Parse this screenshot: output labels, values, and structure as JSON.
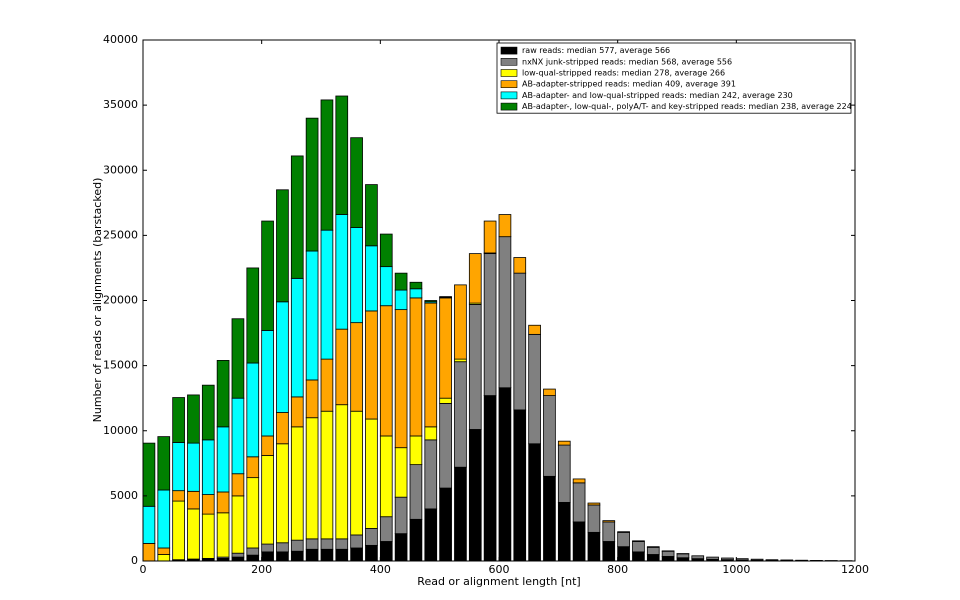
{
  "chart_data": {
    "type": "stacked_histogram",
    "xlabel": "Read or alignment length [nt]",
    "ylabel": "Number of reads or alignments (barstacked)",
    "bins": [
      0,
      25,
      50,
      75,
      100,
      125,
      150,
      175,
      200,
      225,
      250,
      275,
      300,
      325,
      350,
      375,
      400,
      425,
      450,
      475,
      500,
      525,
      550,
      575,
      600,
      625,
      650,
      675,
      700,
      725,
      750,
      775,
      800,
      825,
      850,
      875,
      900,
      925,
      950,
      975,
      1000,
      1025,
      1050,
      1075,
      1100,
      1125,
      1150,
      1175,
      1200
    ],
    "xlim": [
      0,
      1200
    ],
    "xticks": [
      0,
      200,
      400,
      600,
      800,
      1000,
      1200
    ],
    "ylim": [
      0,
      40000
    ],
    "yticks": [
      0,
      5000,
      10000,
      15000,
      20000,
      25000,
      30000,
      35000,
      40000
    ],
    "legend": "upper right",
    "series": [
      {
        "name": "raw reads: median 577, average 566",
        "color": "#000000",
        "values": [
          0,
          0,
          50,
          100,
          150,
          200,
          300,
          450,
          700,
          700,
          750,
          900,
          900,
          900,
          1000,
          1200,
          1500,
          2100,
          3200,
          4000,
          5600,
          7200,
          10100,
          12700,
          13300,
          11600,
          9000,
          6500,
          4500,
          3000,
          2200,
          1500,
          1100,
          700,
          500,
          350,
          250,
          180,
          130,
          100,
          80,
          60,
          45,
          35,
          25,
          20,
          15,
          10
        ]
      },
      {
        "name": "nxNX junk-stripped reads: median 568, average 556",
        "color": "#808080",
        "values": [
          0,
          0,
          50,
          50,
          50,
          100,
          300,
          550,
          600,
          700,
          850,
          800,
          800,
          800,
          1000,
          1300,
          1900,
          2800,
          4200,
          5300,
          6500,
          8100,
          9600,
          10900,
          11600,
          10500,
          8400,
          6200,
          4400,
          3000,
          2100,
          1500,
          1100,
          800,
          550,
          400,
          300,
          220,
          170,
          130,
          100,
          80,
          55,
          45,
          35,
          25,
          20,
          15
        ]
      },
      {
        "name": "low-qual-stripped reads: median 278, average 266",
        "color": "#ffff00",
        "values": [
          0,
          500,
          4500,
          3850,
          3400,
          3400,
          4400,
          5400,
          6800,
          7600,
          8700,
          9300,
          9800,
          10300,
          9500,
          8400,
          6200,
          3800,
          2200,
          1000,
          400,
          200,
          100,
          50,
          0,
          0,
          0,
          0,
          0,
          0,
          0,
          0,
          0,
          0,
          0,
          0,
          0,
          0,
          0,
          0,
          0,
          0,
          0,
          0,
          0,
          0,
          0,
          0
        ]
      },
      {
        "name": "AB-adapter-stripped reads: median 409, average 391",
        "color": "#ffa500",
        "values": [
          1350,
          500,
          800,
          1350,
          1500,
          1600,
          1700,
          1600,
          1500,
          2400,
          2300,
          2900,
          4000,
          5800,
          6800,
          8300,
          10000,
          10600,
          10600,
          9500,
          7700,
          5700,
          3800,
          2450,
          1700,
          1200,
          700,
          500,
          300,
          300,
          150,
          100,
          50,
          50,
          50,
          30,
          20,
          0,
          0,
          0,
          0,
          0,
          0,
          0,
          0,
          0,
          0,
          0
        ]
      },
      {
        "name": "AB-adapter- and low-qual-stripped reads: median 242, average 230",
        "color": "#00ffff",
        "values": [
          2850,
          4450,
          3700,
          3700,
          4200,
          5000,
          5800,
          7200,
          8100,
          8500,
          9100,
          9900,
          9900,
          8800,
          7300,
          5000,
          3000,
          1500,
          700,
          100,
          50,
          0,
          0,
          0,
          0,
          0,
          0,
          0,
          0,
          0,
          0,
          0,
          0,
          0,
          0,
          0,
          0,
          0,
          0,
          0,
          0,
          0,
          0,
          0,
          0,
          0,
          0,
          0
        ]
      },
      {
        "name": "AB-adapter-, low-qual-, polyA/T- and key-stripped reads: median 238, average 224",
        "color": "#008000",
        "values": [
          4850,
          4100,
          3450,
          3700,
          4200,
          5100,
          6100,
          7300,
          8400,
          8600,
          9400,
          10200,
          10000,
          9100,
          6900,
          4700,
          2500,
          1300,
          500,
          100,
          50,
          0,
          0,
          0,
          0,
          0,
          0,
          0,
          0,
          0,
          0,
          0,
          0,
          0,
          0,
          0,
          0,
          0,
          0,
          0,
          0,
          0,
          0,
          0,
          0,
          0,
          0,
          0
        ]
      }
    ]
  }
}
